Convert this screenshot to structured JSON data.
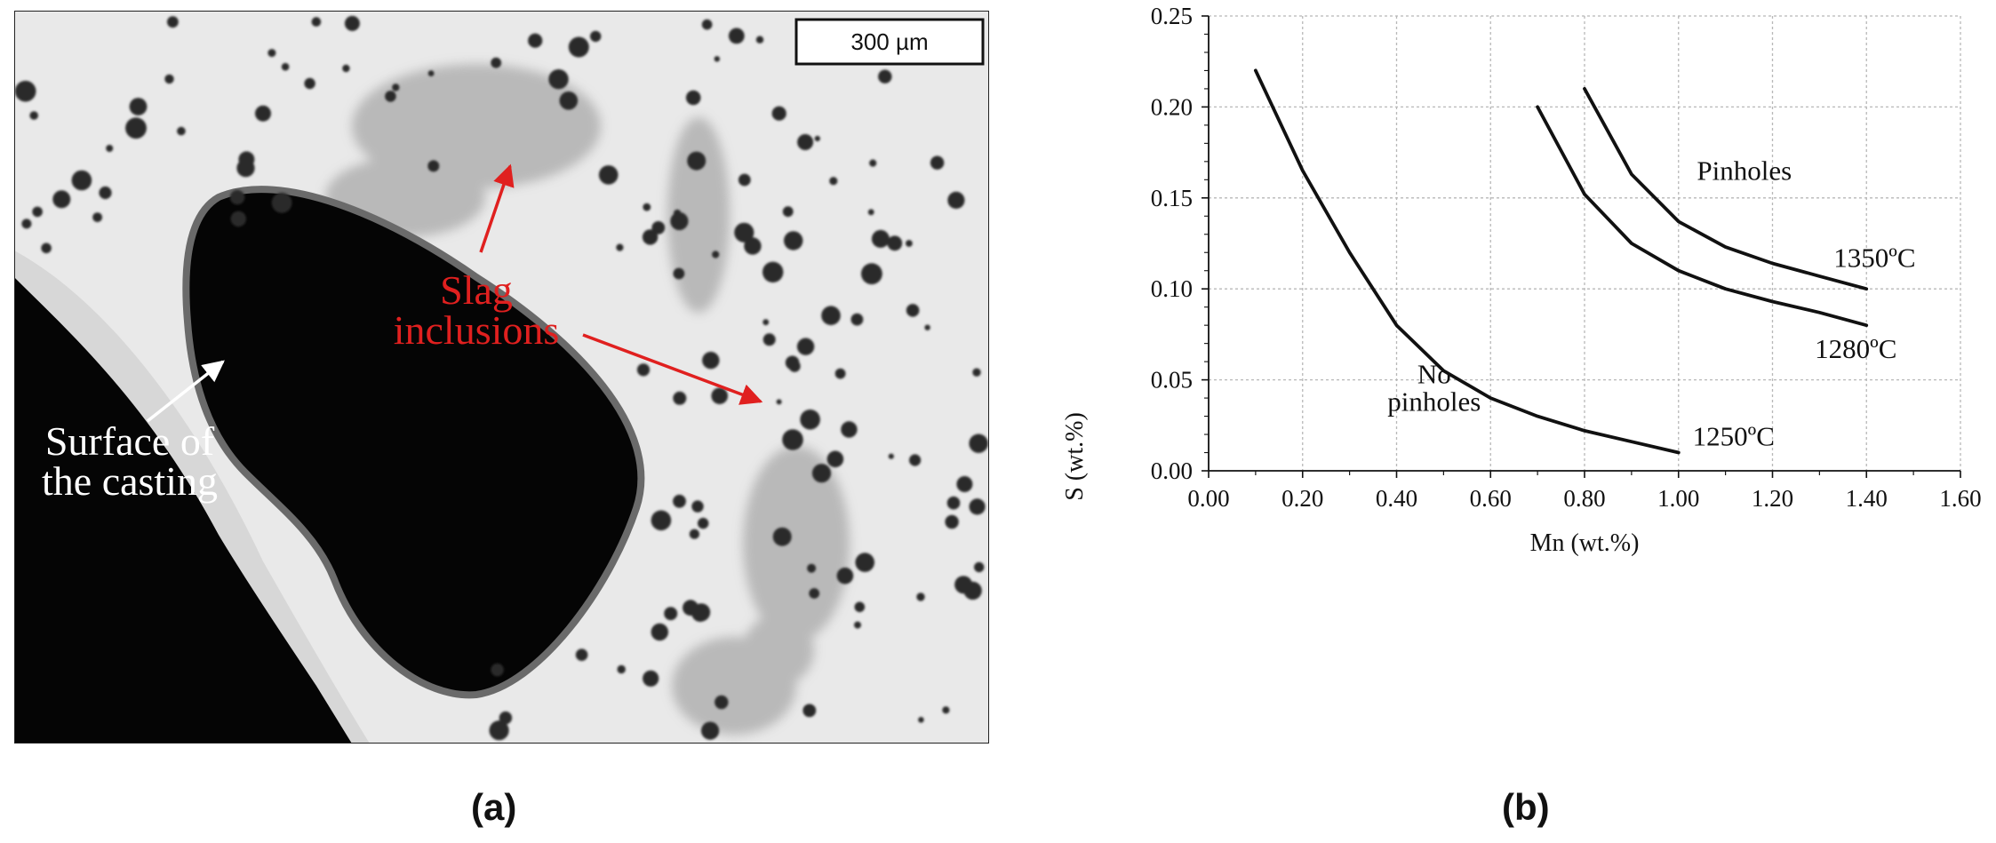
{
  "panel_a": {
    "caption": "(a)",
    "scale_bar": "300 µm",
    "annotation_slag_line1": "Slag",
    "annotation_slag_line2": "inclusions",
    "annotation_surface_line1": "Surface of",
    "annotation_surface_line2": "the casting",
    "annotation_color": "#e0201f"
  },
  "panel_b": {
    "caption": "(b)"
  },
  "chart_data": {
    "type": "line",
    "xlabel": "Mn (wt.%)",
    "ylabel": "S (wt.%)",
    "xlim": [
      0,
      1.6
    ],
    "ylim": [
      0,
      0.25
    ],
    "xticks": [
      "0.00",
      "0.20",
      "0.40",
      "0.60",
      "0.80",
      "1.00",
      "1.20",
      "1.40",
      "1.60"
    ],
    "yticks": [
      "0.00",
      "0.05",
      "0.10",
      "0.15",
      "0.20",
      "0.25"
    ],
    "grid": true,
    "series": [
      {
        "name": "1250ºC",
        "x": [
          0.1,
          0.2,
          0.3,
          0.4,
          0.5,
          0.6,
          0.7,
          0.8,
          0.9,
          1.0
        ],
        "y": [
          0.22,
          0.165,
          0.12,
          0.08,
          0.055,
          0.04,
          0.03,
          0.022,
          0.016,
          0.01
        ]
      },
      {
        "name": "1280ºC",
        "x": [
          0.7,
          0.8,
          0.9,
          1.0,
          1.1,
          1.2,
          1.3,
          1.4
        ],
        "y": [
          0.2,
          0.152,
          0.125,
          0.11,
          0.1,
          0.093,
          0.087,
          0.08
        ]
      },
      {
        "name": "1350ºC",
        "x": [
          0.8,
          0.9,
          1.0,
          1.1,
          1.2,
          1.3,
          1.4
        ],
        "y": [
          0.21,
          0.163,
          0.137,
          0.123,
          0.114,
          0.107,
          0.1
        ]
      }
    ],
    "annotations": {
      "pinholes": "Pinholes",
      "no_pinholes_line1": "No",
      "no_pinholes_line2": "pinholes"
    }
  }
}
